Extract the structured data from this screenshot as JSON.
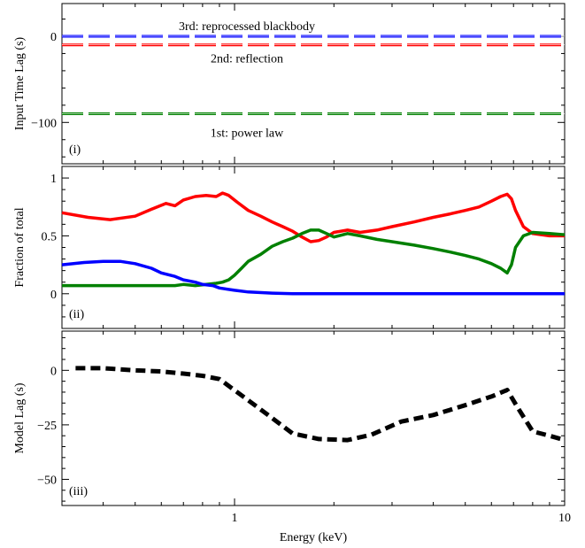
{
  "chart_data": [
    {
      "panel": "(i)",
      "type": "line",
      "ylabel": "Input Time Lag (s)",
      "ylim": [
        -148,
        38
      ],
      "yticks": [
        0,
        -100
      ],
      "ytick_labels": [
        "0",
        "−100"
      ],
      "series": [
        {
          "name": "3rd: reprocessed blackbody",
          "color": "#0000ff",
          "style": "dashed",
          "y": 0
        },
        {
          "name": "2nd: reflection",
          "color": "#ff0000",
          "style": "dashed",
          "y": -10
        },
        {
          "name": "1st: power law",
          "color": "#008000",
          "style": "dashed",
          "y": -90
        }
      ]
    },
    {
      "panel": "(ii)",
      "type": "line",
      "ylabel": "Fraction of total",
      "ylim": [
        -0.3,
        1.1
      ],
      "yticks": [
        0,
        0.5,
        1
      ],
      "ytick_labels": [
        "0",
        "0.5",
        "1"
      ],
      "series": [
        {
          "name": "reflection",
          "color": "#ff0000",
          "x": [
            0.3,
            0.36,
            0.42,
            0.5,
            0.56,
            0.62,
            0.66,
            0.7,
            0.76,
            0.82,
            0.88,
            0.92,
            0.96,
            1.02,
            1.1,
            1.2,
            1.3,
            1.4,
            1.5,
            1.6,
            1.7,
            1.8,
            1.9,
            2.0,
            2.2,
            2.4,
            2.7,
            3.0,
            3.5,
            4.0,
            4.5,
            5.0,
            5.5,
            6.0,
            6.4,
            6.7,
            6.9,
            7.1,
            7.5,
            8.0,
            9.0,
            10.0
          ],
          "y": [
            0.7,
            0.66,
            0.64,
            0.67,
            0.73,
            0.78,
            0.76,
            0.81,
            0.84,
            0.85,
            0.84,
            0.87,
            0.85,
            0.79,
            0.72,
            0.67,
            0.62,
            0.58,
            0.54,
            0.49,
            0.45,
            0.46,
            0.49,
            0.53,
            0.55,
            0.53,
            0.55,
            0.58,
            0.62,
            0.66,
            0.69,
            0.72,
            0.75,
            0.8,
            0.84,
            0.86,
            0.82,
            0.72,
            0.58,
            0.52,
            0.5,
            0.5
          ]
        },
        {
          "name": "power law",
          "color": "#008000",
          "x": [
            0.3,
            0.4,
            0.5,
            0.56,
            0.6,
            0.66,
            0.7,
            0.76,
            0.82,
            0.88,
            0.92,
            0.96,
            1.0,
            1.05,
            1.1,
            1.2,
            1.3,
            1.4,
            1.5,
            1.6,
            1.7,
            1.8,
            1.9,
            2.0,
            2.2,
            2.4,
            2.7,
            3.0,
            3.5,
            4.0,
            4.5,
            5.0,
            5.5,
            6.0,
            6.4,
            6.7,
            6.9,
            7.1,
            7.5,
            8.0,
            9.0,
            10.0
          ],
          "y": [
            0.07,
            0.07,
            0.07,
            0.07,
            0.07,
            0.07,
            0.08,
            0.07,
            0.08,
            0.09,
            0.1,
            0.12,
            0.16,
            0.22,
            0.28,
            0.34,
            0.41,
            0.45,
            0.48,
            0.52,
            0.55,
            0.55,
            0.52,
            0.49,
            0.52,
            0.5,
            0.47,
            0.45,
            0.42,
            0.39,
            0.36,
            0.33,
            0.3,
            0.26,
            0.22,
            0.18,
            0.25,
            0.4,
            0.5,
            0.53,
            0.52,
            0.51
          ]
        },
        {
          "name": "reprocessed blackbody",
          "color": "#0000ff",
          "x": [
            0.3,
            0.35,
            0.4,
            0.45,
            0.5,
            0.56,
            0.6,
            0.66,
            0.7,
            0.76,
            0.8,
            0.86,
            0.9,
            1.0,
            1.1,
            1.3,
            1.5,
            2.0,
            3.0,
            5.0,
            7.0,
            10.0
          ],
          "y": [
            0.25,
            0.27,
            0.28,
            0.28,
            0.26,
            0.22,
            0.18,
            0.15,
            0.12,
            0.1,
            0.08,
            0.07,
            0.05,
            0.03,
            0.015,
            0.005,
            0.0,
            0.0,
            0.0,
            0.0,
            0.0,
            0.0
          ]
        }
      ]
    },
    {
      "panel": "(iii)",
      "type": "line",
      "xlabel": "Energy (keV)",
      "ylabel": "Model Lag (s)",
      "xscale": "log",
      "xlim": [
        0.3,
        10
      ],
      "xticks": [
        1,
        10
      ],
      "xtick_labels": [
        "1",
        "10"
      ],
      "ylim": [
        -62,
        18
      ],
      "yticks": [
        0,
        -25,
        -50
      ],
      "ytick_labels": [
        "0",
        "−25",
        "−50"
      ],
      "series": [
        {
          "name": "model lag",
          "color": "#000000",
          "style": "dashed",
          "x": [
            0.33,
            0.4,
            0.5,
            0.6,
            0.7,
            0.8,
            0.9,
            1.2,
            1.5,
            1.8,
            2.2,
            2.6,
            3.2,
            4.0,
            5.0,
            6.0,
            6.7,
            7.2,
            8.0,
            9.0,
            10.0
          ],
          "y": [
            1,
            1,
            0,
            -0.5,
            -1.5,
            -2.5,
            -4,
            -18,
            -29,
            -31.5,
            -32,
            -29.5,
            -23.5,
            -20.5,
            -16,
            -12,
            -9,
            -17,
            -28,
            -30,
            -32
          ]
        }
      ]
    }
  ]
}
